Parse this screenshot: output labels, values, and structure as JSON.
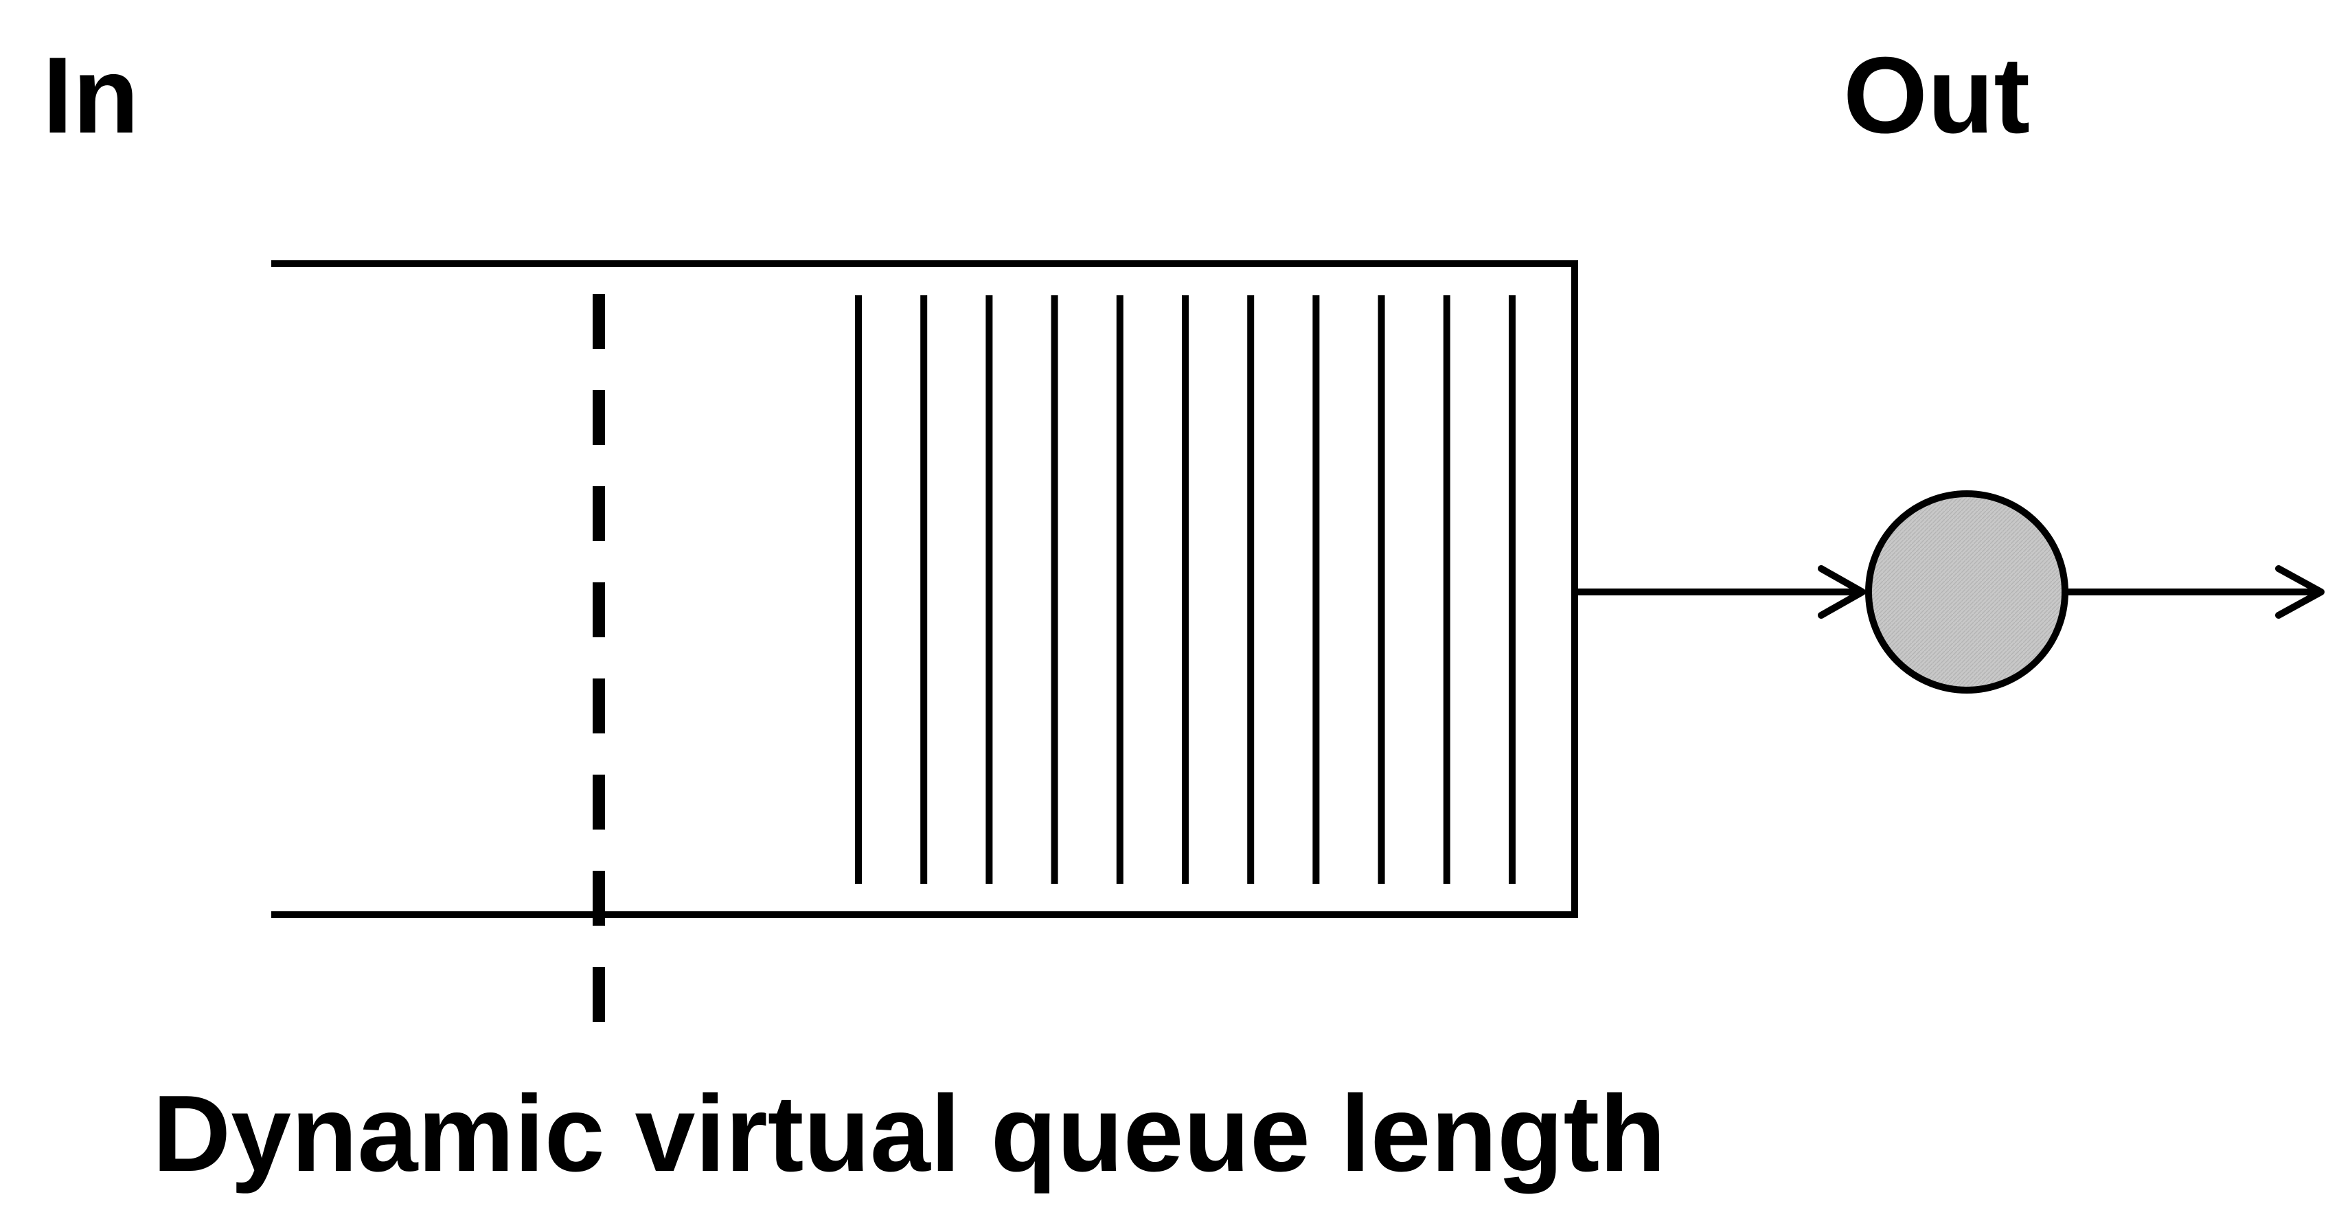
{
  "labels": {
    "input": "In",
    "output": "Out",
    "caption": "Dynamic virtual queue length"
  },
  "queue": {
    "packet_count": 11
  },
  "colors": {
    "stroke": "#000000",
    "server_fill": "#c8c8c8",
    "background": "#ffffff"
  }
}
